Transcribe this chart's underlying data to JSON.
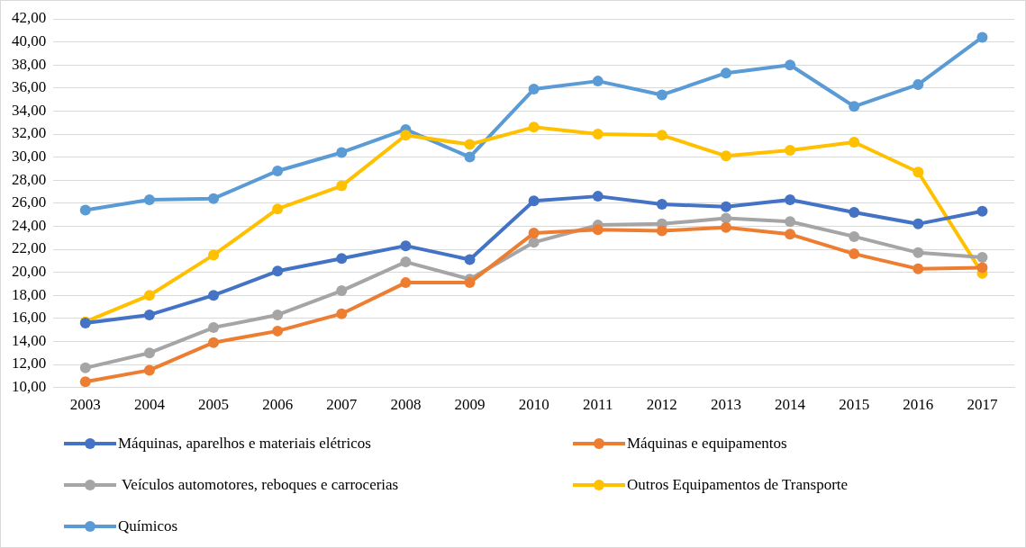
{
  "chart_data": {
    "type": "line",
    "categories": [
      "2003",
      "2004",
      "2005",
      "2006",
      "2007",
      "2008",
      "2009",
      "2010",
      "2011",
      "2012",
      "2013",
      "2014",
      "2015",
      "2016",
      "2017"
    ],
    "series": [
      {
        "name": "Máquinas, aparelhos e materiais elétricos",
        "color": "#4472c4",
        "values": [
          15.6,
          16.3,
          18.0,
          20.1,
          21.2,
          22.3,
          21.1,
          26.2,
          26.6,
          25.9,
          25.7,
          26.3,
          25.2,
          24.2,
          25.3
        ]
      },
      {
        "name": "Máquinas e equipamentos",
        "color": "#ed7d31",
        "values": [
          10.5,
          11.5,
          13.9,
          14.9,
          16.4,
          19.1,
          19.1,
          23.4,
          23.7,
          23.6,
          23.9,
          23.3,
          21.6,
          20.3,
          20.4
        ]
      },
      {
        "name": " Veículos automotores, reboques e carrocerias",
        "color": "#a5a5a5",
        "values": [
          11.7,
          13.0,
          15.2,
          16.3,
          18.4,
          20.9,
          19.4,
          22.6,
          24.1,
          24.2,
          24.7,
          24.4,
          23.1,
          21.7,
          21.3
        ]
      },
      {
        "name": "Outros Equipamentos de Transporte",
        "color": "#ffc000",
        "values": [
          15.7,
          18.0,
          21.5,
          25.5,
          27.5,
          31.9,
          31.1,
          32.6,
          32.0,
          31.9,
          30.1,
          30.6,
          31.3,
          28.7,
          19.9
        ]
      },
      {
        "name": "Químicos",
        "color": "#5b9bd5",
        "values": [
          25.4,
          26.3,
          26.4,
          28.8,
          30.4,
          32.4,
          30.0,
          35.9,
          36.6,
          35.4,
          37.3,
          38.0,
          34.4,
          36.3,
          40.4
        ]
      }
    ],
    "ylim": [
      10,
      42
    ],
    "yticks": [
      {
        "value": 10,
        "label": "10,00"
      },
      {
        "value": 12,
        "label": "12,00"
      },
      {
        "value": 14,
        "label": "14,00"
      },
      {
        "value": 16,
        "label": "16,00"
      },
      {
        "value": 18,
        "label": "18,00"
      },
      {
        "value": 20,
        "label": "20,00"
      },
      {
        "value": 22,
        "label": "22,00"
      },
      {
        "value": 24,
        "label": "24,00"
      },
      {
        "value": 26,
        "label": "26,00"
      },
      {
        "value": 28,
        "label": "28,00"
      },
      {
        "value": 30,
        "label": "30,00"
      },
      {
        "value": 32,
        "label": "32,00"
      },
      {
        "value": 34,
        "label": "34,00"
      },
      {
        "value": 36,
        "label": "36,00"
      },
      {
        "value": 38,
        "label": "38,00"
      },
      {
        "value": 40,
        "label": "40,00"
      },
      {
        "value": 42,
        "label": "42,00"
      }
    ],
    "grid": "y",
    "legend": "bottom",
    "marker": "circle",
    "line_style": "solid"
  }
}
